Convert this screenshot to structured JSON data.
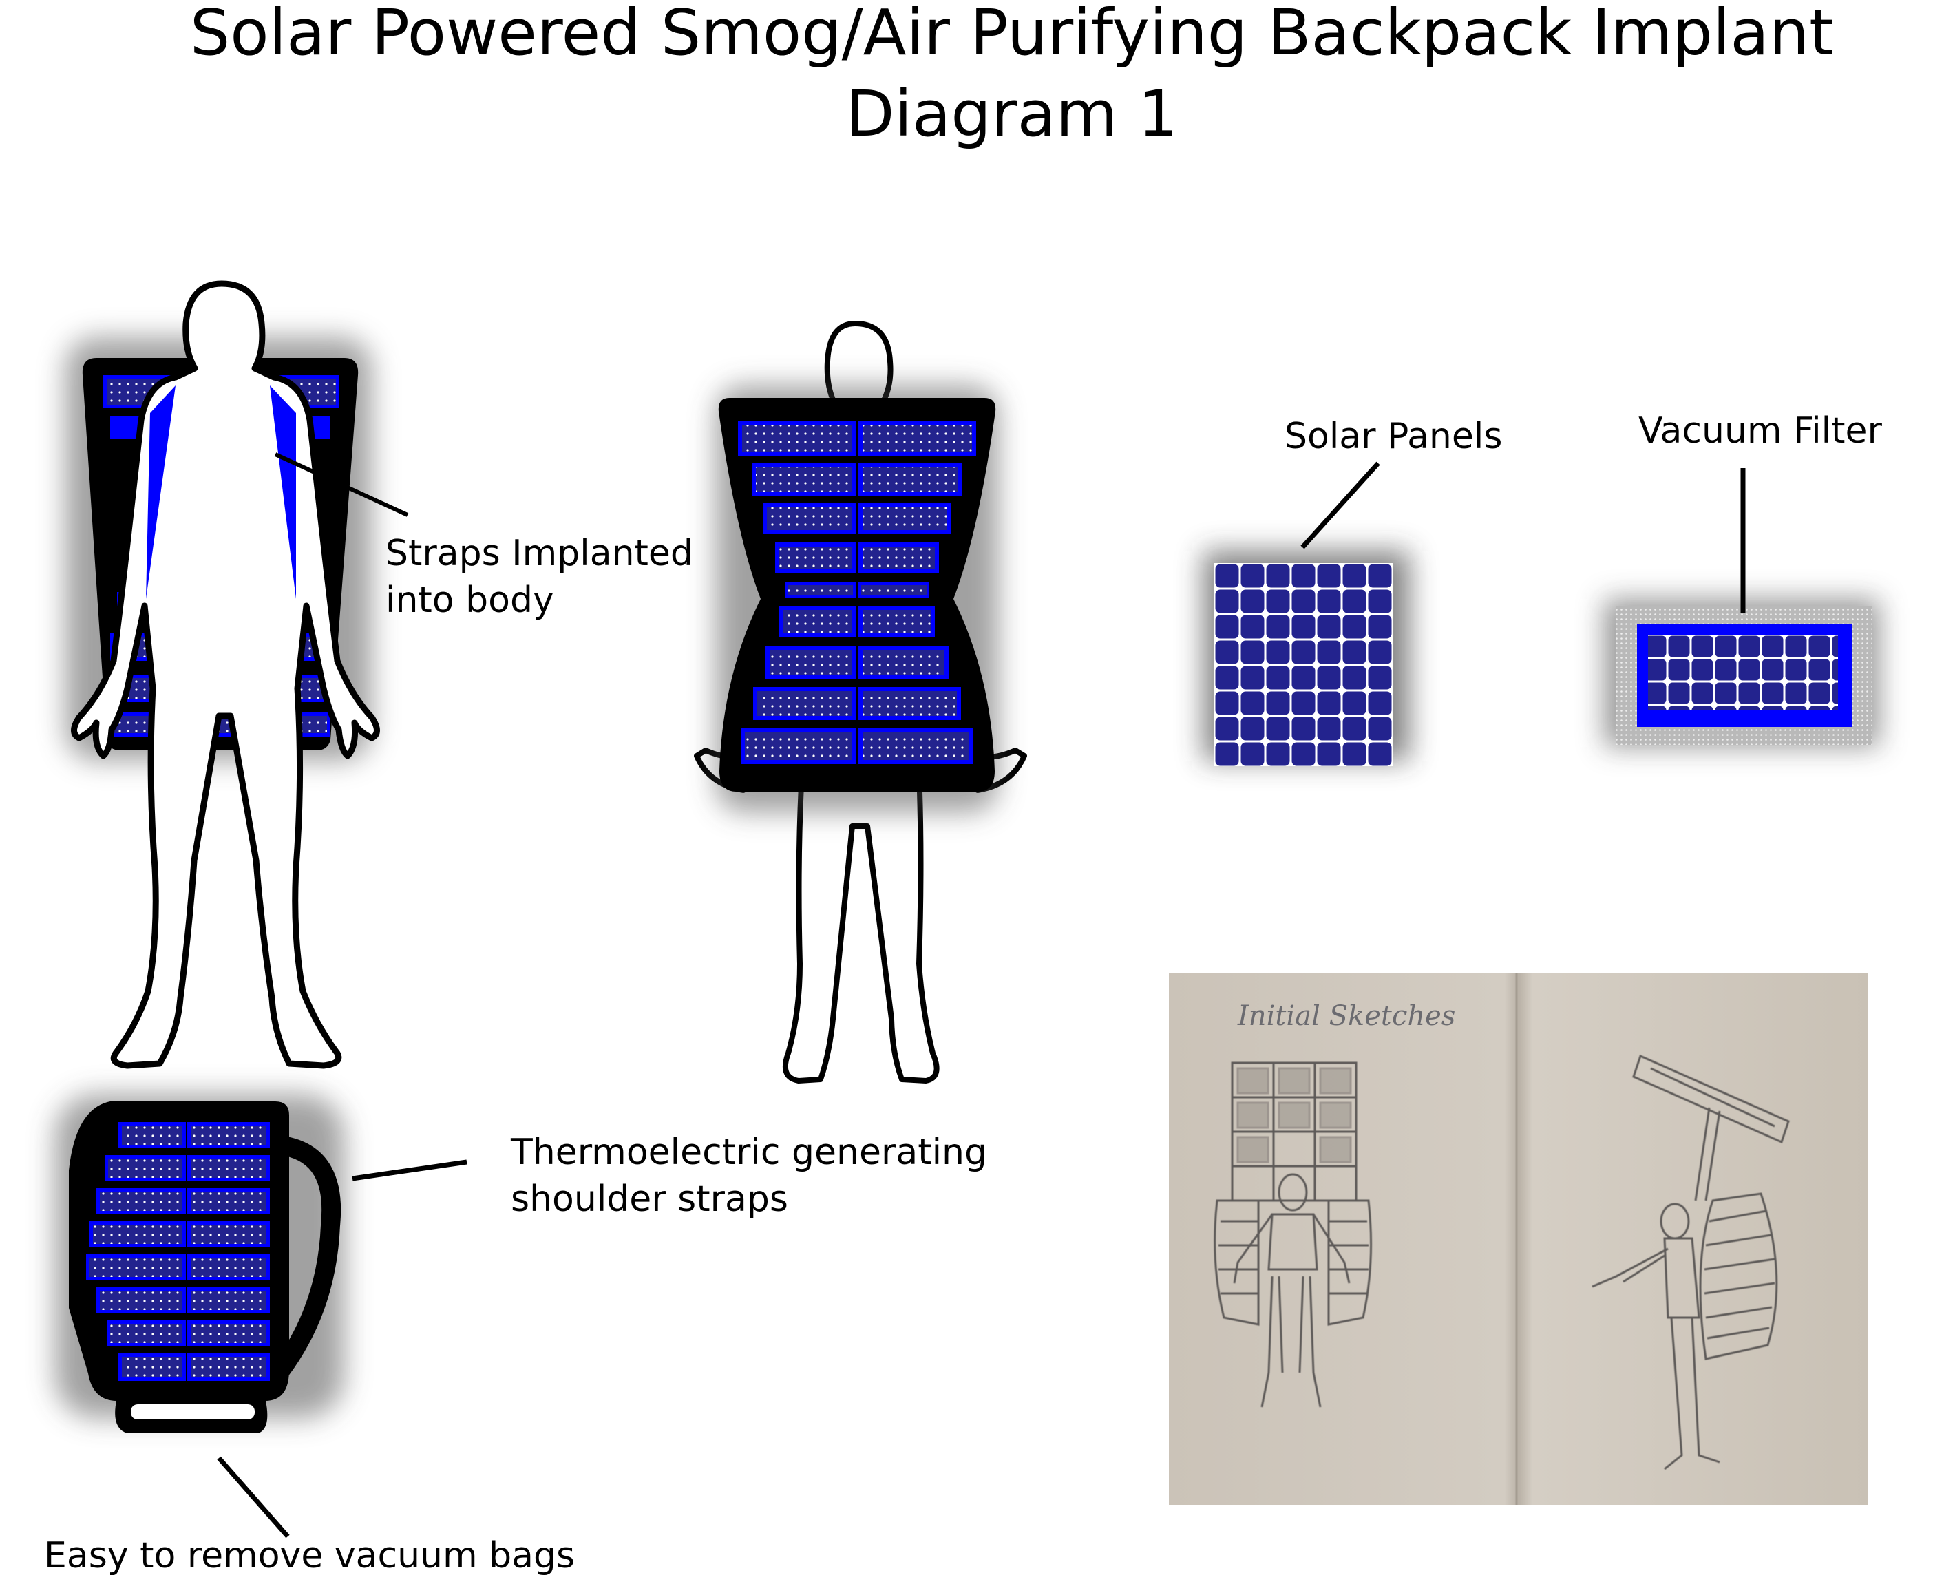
{
  "title": {
    "line1": "Solar Powered Smog/Air Purifying Backpack Implant",
    "line2": "Diagram 1"
  },
  "labels": {
    "straps": [
      "Straps Implanted",
      "into body"
    ],
    "solar_panels": "Solar Panels",
    "vacuum_filter": "Vacuum Filter",
    "thermoelectric": [
      "Thermoelectric generating",
      "shoulder straps"
    ],
    "vacuum_bags": "Easy to remove vacuum bags",
    "sketch_caption": "Initial Sketches"
  },
  "colors": {
    "panel_blue": "#0000ff",
    "cell_navy": "#23238e",
    "outline": "#000000",
    "paper": "#cfc7bd"
  }
}
